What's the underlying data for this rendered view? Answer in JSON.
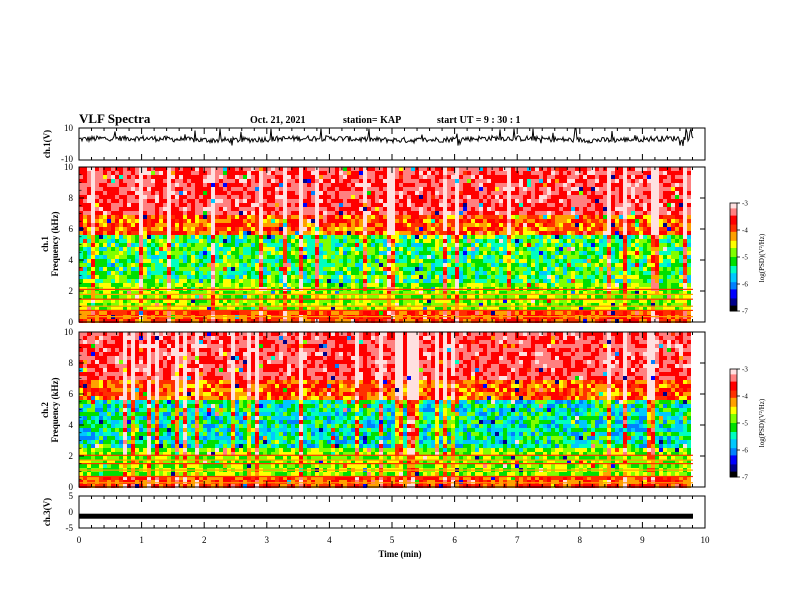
{
  "header": {
    "title": "VLF Spectra",
    "date": "Oct. 21, 2021",
    "station": "station= KAP",
    "start_ut": "start  UT =  9 : 30 : 1"
  },
  "chart_data": [
    {
      "type": "line",
      "panel": "ch1-waveform",
      "ylabel": "ch.1(V)",
      "ylim": [
        -10,
        10
      ],
      "yticks": [
        "10",
        "-10"
      ],
      "xlim": [
        0,
        10
      ],
      "description_values": {
        "x": [
          0,
          1,
          2,
          3,
          4,
          5,
          6,
          7,
          8,
          9,
          9.8
        ],
        "y_mean": [
          3,
          2.5,
          3,
          2,
          3,
          3,
          2.5,
          3,
          3,
          3,
          4
        ]
      },
      "series_color": "#000000"
    },
    {
      "type": "heatmap",
      "panel": "ch1-spectrogram",
      "ylabel": "ch.1\nFrequency (kHz)",
      "ylim": [
        0,
        10
      ],
      "yticks": [
        "0",
        "2",
        "4",
        "6",
        "8",
        "10"
      ],
      "xlim": [
        0,
        10
      ],
      "colorbar": {
        "label": "log(PSD)(V²/Hz)",
        "range": [
          -7,
          -3
        ],
        "ticks": [
          "-3",
          "-4",
          "-5",
          "-6",
          "-7"
        ]
      }
    },
    {
      "type": "heatmap",
      "panel": "ch2-spectrogram",
      "ylabel": "ch.2\nFrequency (kHz)",
      "ylim": [
        0,
        10
      ],
      "yticks": [
        "0",
        "2",
        "4",
        "6",
        "8",
        "10"
      ],
      "xlim": [
        0,
        10
      ],
      "colorbar": {
        "label": "log(PSD)(V²/Hz)",
        "range": [
          -7,
          -3
        ],
        "ticks": [
          "-3",
          "-4",
          "-5",
          "-6",
          "-7"
        ]
      }
    },
    {
      "type": "line",
      "panel": "ch3-waveform",
      "ylabel": "ch.3(V)",
      "ylim": [
        -5,
        5
      ],
      "yticks": [
        "5",
        "0",
        "-5"
      ],
      "xlim": [
        0,
        10
      ],
      "xlabel": "Time (min)",
      "xticks": [
        "0",
        "1",
        "2",
        "3",
        "4",
        "5",
        "6",
        "7",
        "8",
        "9",
        "10"
      ],
      "series_value": -1.3,
      "series_color": "#000000"
    }
  ],
  "colormap": [
    "#000000",
    "#00008b",
    "#0000ff",
    "#0080ff",
    "#00c8ff",
    "#00ffc0",
    "#00e000",
    "#80ff00",
    "#ffff00",
    "#ffa000",
    "#ff3000",
    "#ff0000",
    "#ff8080",
    "#ffe0e0"
  ]
}
